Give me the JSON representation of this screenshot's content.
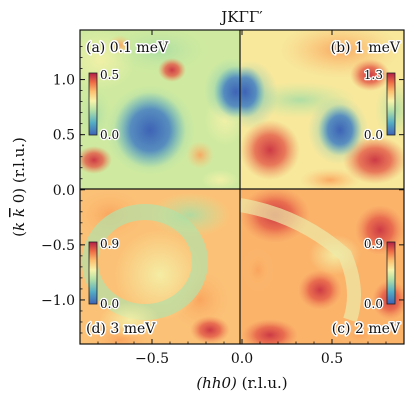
{
  "chart_data": {
    "type": "heatmap",
    "title": "JKΓΓ′",
    "xlabel_main": "(hh0)",
    "xlabel_unit": " (r.l.u.)",
    "ylabel_prefix": "(",
    "ylabel_k": "k",
    "ylabel_kbar": "k",
    "ylabel_suffix": " 0) (r.l.u.)",
    "xlim": [
      -0.9,
      0.9
    ],
    "ylim": [
      -1.4,
      1.45
    ],
    "x_ticks": [
      -0.5,
      0.0,
      0.5
    ],
    "x_tick_labels": [
      "−0.5",
      "0.0",
      "0.5"
    ],
    "y_ticks": [
      1.0,
      0.5,
      0.0,
      -0.5,
      -1.0
    ],
    "y_tick_labels": [
      "1.0",
      "0.5",
      "0.0",
      "−0.5",
      "−1.0"
    ],
    "colormap": "Spectral_r",
    "panels": [
      {
        "label": "(a) 0.1 meV",
        "quadrant": "top-left",
        "cbar_min": "0.0",
        "cbar_max": "0.5",
        "cbar_side": "left"
      },
      {
        "label": "(b) 1 meV",
        "quadrant": "top-right",
        "cbar_min": "0.0",
        "cbar_max": "1.3",
        "cbar_side": "right"
      },
      {
        "label": "(d) 3 meV",
        "quadrant": "bottom-left",
        "cbar_min": "0.0",
        "cbar_max": "0.9",
        "cbar_side": "left"
      },
      {
        "label": "(c) 2 meV",
        "quadrant": "bottom-right",
        "cbar_min": "0.0",
        "cbar_max": "0.9",
        "cbar_side": "right"
      }
    ]
  }
}
